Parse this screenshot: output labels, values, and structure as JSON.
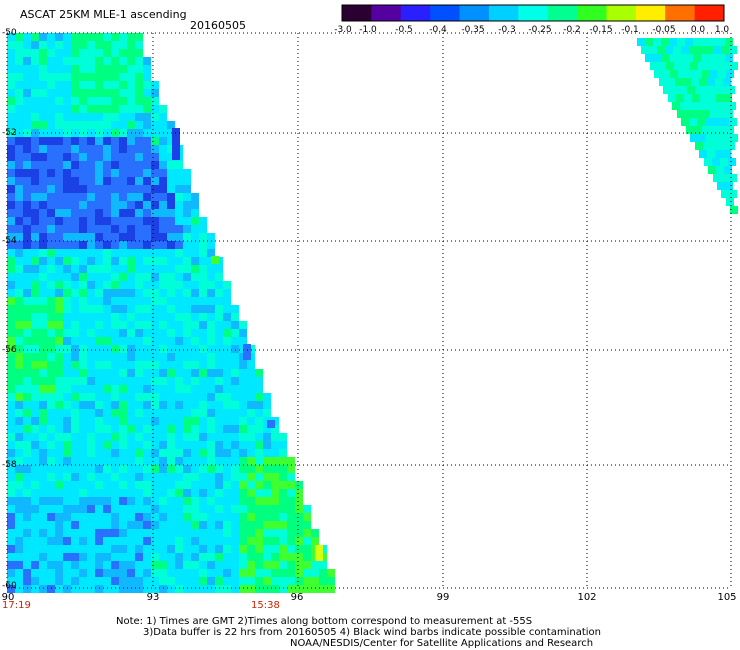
{
  "header": {
    "title": "ASCAT 25KM MLE-1 ascending",
    "date": "20160505"
  },
  "colorbar": {
    "labels": [
      "-3.0",
      "-1.0",
      "-0.5",
      "-0.4",
      "-0.35",
      "-0.3",
      "-0.25",
      "-0.2",
      "-0.15",
      "-0.1",
      "-0.05",
      "0.0",
      "1.0"
    ],
    "colors": [
      "#2a0030",
      "#5500a0",
      "#2a20ff",
      "#0050ff",
      "#0090ff",
      "#00d0ff",
      "#00ffe8",
      "#00ff90",
      "#30ff20",
      "#aaff00",
      "#ffee00",
      "#ff7000",
      "#ff2000"
    ]
  },
  "map": {
    "lat_labels": [
      "-50",
      "-52",
      "-54",
      "-56",
      "-58",
      "-60"
    ],
    "lon_labels": [
      "90",
      "93",
      "96",
      "99",
      "102",
      "105"
    ],
    "start_time": "17:19",
    "end_time": "15:38",
    "palette": {
      "blue_dark": "#1a40e6",
      "blue": "#2a70ff",
      "sky": "#10b8ff",
      "cyan": "#00e8ff",
      "aqua": "#00ffd8",
      "green": "#00ff80",
      "lime": "#40ff30",
      "yellow": "#d8ff10"
    }
  },
  "notes": {
    "line1": "Note: 1) Times are GMT 2)Times along bottom correspond to measurement at -55S",
    "line2": "3)Data buffer is 22 hrs from 20160505 4) Black wind barbs indicate possible contamination",
    "line3": "NOAA/NESDIS/Center for Satellite Applications and Research"
  }
}
